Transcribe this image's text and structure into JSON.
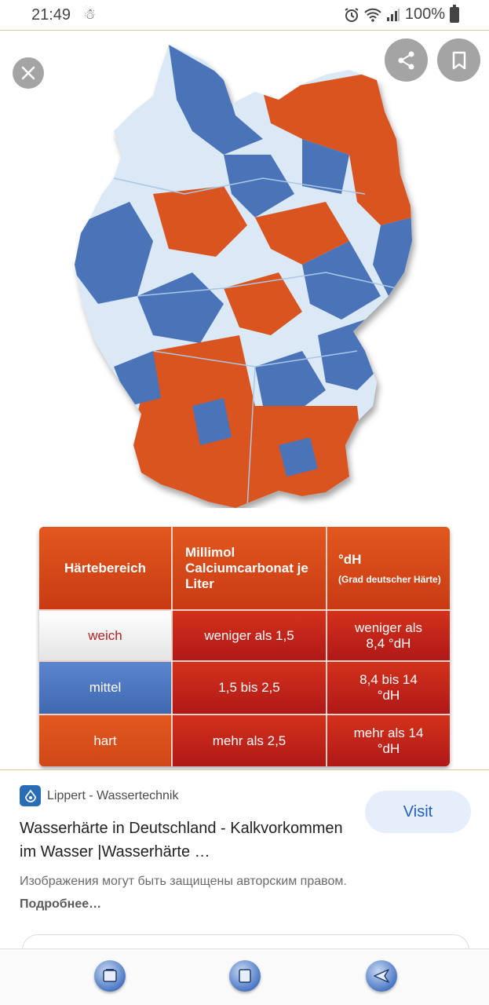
{
  "status_bar": {
    "time": "21:49",
    "battery": "100%",
    "icons": [
      "alarm-icon",
      "wifi-icon",
      "signal-icon",
      "battery-icon"
    ]
  },
  "viewer": {
    "actions": [
      "close-icon",
      "share-icon",
      "bookmark-icon"
    ],
    "map_colors": {
      "weich": "#dbe8f5",
      "mittel": "#4a73b8",
      "hart": "#d9541e"
    }
  },
  "hardness_table": {
    "headers": {
      "range": "Härtebereich",
      "mmol": "Millimol Calciumcarbonat je Liter",
      "dh": "°dH",
      "dh_note": "(Grad deutscher Härte)"
    },
    "rows": [
      {
        "range": "weich",
        "mmol": "weniger als 1,5",
        "dh": "weniger als 8,4 °dH"
      },
      {
        "range": "mittel",
        "mmol": "1,5 bis 2,5",
        "dh": "8,4 bis 14 °dH"
      },
      {
        "range": "hart",
        "mmol": "mehr als 2,5",
        "dh": "mehr als 14 °dH"
      }
    ]
  },
  "result": {
    "source": "Lippert - Wassertechnik",
    "visit_label": "Visit",
    "title": "Wasserhärte in Deutschland - Kalkvorkommen im Wasser |Wasserhärte …",
    "copyright_text": "Изображения могут быть защищены авторским правом.",
    "more_link": "Подробнее…"
  },
  "nav_bar": {
    "buttons": [
      "recent-apps-icon",
      "home-icon",
      "back-icon"
    ]
  }
}
